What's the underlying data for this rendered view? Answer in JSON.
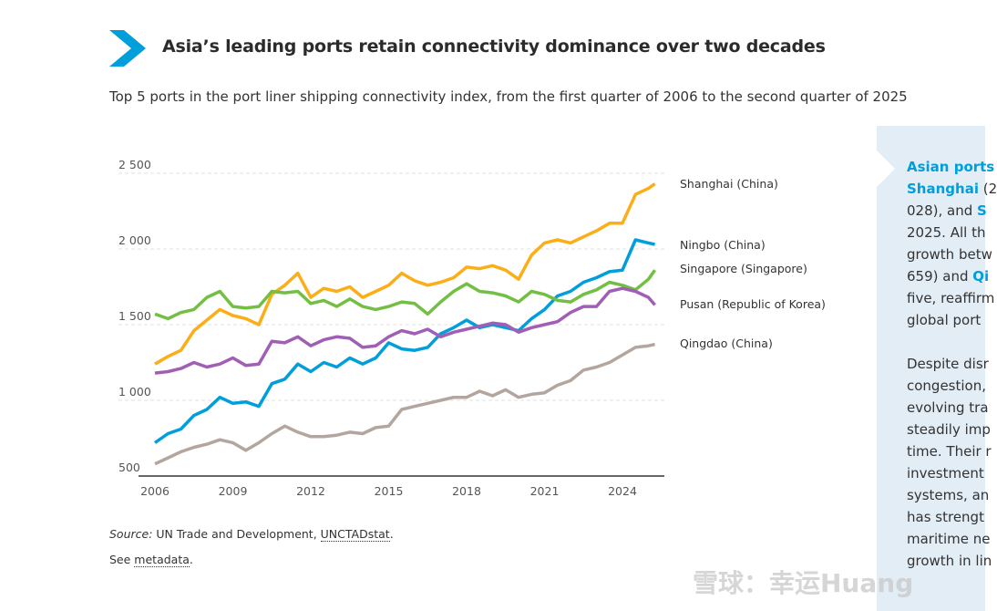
{
  "header": {
    "title": "Asia’s leading ports retain connectivity dominance over two decades",
    "subtitle": "Top 5 ports in the port liner shipping connectivity index, from the first quarter of 2006 to the second quarter of 2025",
    "icon": "chevron-right-icon",
    "accent_color": "#009edb"
  },
  "chart_data": {
    "type": "line",
    "title": "",
    "xlabel": "",
    "ylabel": "",
    "xlim": [
      2006,
      2025.25
    ],
    "ylim": [
      500,
      2500
    ],
    "x_ticks": [
      "2006",
      "2009",
      "2012",
      "2015",
      "2018",
      "2021",
      "2024"
    ],
    "y_ticks": [
      "500",
      "1 000",
      "1 500",
      "2 000",
      "2 500"
    ],
    "grid": "horizontal dashed",
    "legend": "inline labels at right",
    "x": [
      2006,
      2006.5,
      2007,
      2007.5,
      2008,
      2008.5,
      2009,
      2009.5,
      2010,
      2010.5,
      2011,
      2011.5,
      2012,
      2012.5,
      2013,
      2013.5,
      2014,
      2014.5,
      2015,
      2015.5,
      2016,
      2016.5,
      2017,
      2017.5,
      2018,
      2018.5,
      2019,
      2019.5,
      2020,
      2020.5,
      2021,
      2021.5,
      2022,
      2022.5,
      2023,
      2023.5,
      2024,
      2024.5,
      2025,
      2025.25
    ],
    "series": [
      {
        "name": "Shanghai (China)",
        "color": "#fbae17",
        "values": [
          1240,
          1290,
          1330,
          1460,
          1530,
          1600,
          1560,
          1540,
          1500,
          1700,
          1760,
          1840,
          1680,
          1740,
          1720,
          1750,
          1680,
          1720,
          1760,
          1840,
          1790,
          1760,
          1780,
          1810,
          1880,
          1870,
          1890,
          1860,
          1800,
          1960,
          2040,
          2060,
          2040,
          2080,
          2120,
          2170,
          2170,
          2360,
          2400,
          2430
        ]
      },
      {
        "name": "Ningbo (China)",
        "color": "#009edb",
        "values": [
          720,
          780,
          810,
          900,
          940,
          1020,
          980,
          990,
          960,
          1110,
          1140,
          1240,
          1190,
          1250,
          1220,
          1280,
          1240,
          1280,
          1380,
          1340,
          1330,
          1350,
          1440,
          1480,
          1530,
          1480,
          1500,
          1480,
          1460,
          1540,
          1600,
          1690,
          1720,
          1780,
          1810,
          1850,
          1860,
          2060,
          2040,
          2030
        ]
      },
      {
        "name": "Singapore (Singapore)",
        "color": "#72bf44",
        "values": [
          1570,
          1540,
          1580,
          1600,
          1680,
          1720,
          1620,
          1610,
          1620,
          1720,
          1710,
          1720,
          1640,
          1660,
          1620,
          1670,
          1620,
          1600,
          1620,
          1650,
          1640,
          1570,
          1650,
          1720,
          1770,
          1720,
          1710,
          1690,
          1650,
          1720,
          1700,
          1660,
          1650,
          1700,
          1730,
          1780,
          1760,
          1730,
          1800,
          1860
        ]
      },
      {
        "name": "Pusan (Republic of Korea)",
        "color": "#a05eb5",
        "values": [
          1180,
          1190,
          1210,
          1250,
          1220,
          1240,
          1280,
          1230,
          1240,
          1390,
          1380,
          1420,
          1360,
          1400,
          1420,
          1410,
          1350,
          1360,
          1420,
          1460,
          1440,
          1470,
          1420,
          1450,
          1470,
          1490,
          1510,
          1500,
          1450,
          1480,
          1500,
          1520,
          1580,
          1620,
          1620,
          1720,
          1740,
          1720,
          1680,
          1630
        ]
      },
      {
        "name": "Qingdao (China)",
        "color": "#b3a69f",
        "values": [
          580,
          620,
          660,
          690,
          710,
          740,
          720,
          670,
          720,
          780,
          830,
          790,
          760,
          760,
          770,
          790,
          780,
          820,
          830,
          940,
          960,
          980,
          1000,
          1020,
          1020,
          1060,
          1030,
          1070,
          1020,
          1040,
          1050,
          1100,
          1130,
          1200,
          1220,
          1250,
          1300,
          1350,
          1360,
          1370
        ]
      }
    ]
  },
  "footer": {
    "source_label": "Source:",
    "source_text": " UN Trade and Development, ",
    "source_link": "UNCTADstat",
    "source_end": ".",
    "see_text": "See ",
    "metadata_link": "metadata",
    "metadata_end": "."
  },
  "sidebar": {
    "background": "#e3edf6",
    "lines": [
      [
        {
          "t": "Asian ports",
          "hl": true
        }
      ],
      [
        {
          "t": "Shanghai",
          "hl": true
        },
        {
          "t": " (2"
        }
      ],
      [
        {
          "t": "028), and "
        },
        {
          "t": "S",
          "hl": true
        }
      ],
      [
        {
          "t": "2025. All th"
        }
      ],
      [
        {
          "t": "growth betw"
        }
      ],
      [
        {
          "t": "659) and "
        },
        {
          "t": "Qi",
          "hl": true
        }
      ],
      [
        {
          "t": "five, reaffirm"
        }
      ],
      [
        {
          "t": "global port"
        }
      ],
      [],
      [
        {
          "t": "Despite disr"
        }
      ],
      [
        {
          "t": "congestion,"
        }
      ],
      [
        {
          "t": "evolving tra"
        }
      ],
      [
        {
          "t": "steadily imp"
        }
      ],
      [
        {
          "t": "time. Their r"
        }
      ],
      [
        {
          "t": "investment"
        }
      ],
      [
        {
          "t": "systems, an"
        }
      ],
      [
        {
          "t": "has strengt"
        }
      ],
      [
        {
          "t": "maritime ne"
        }
      ],
      [
        {
          "t": "growth in lin"
        }
      ]
    ]
  },
  "watermark": "雪球：幸运Huang"
}
